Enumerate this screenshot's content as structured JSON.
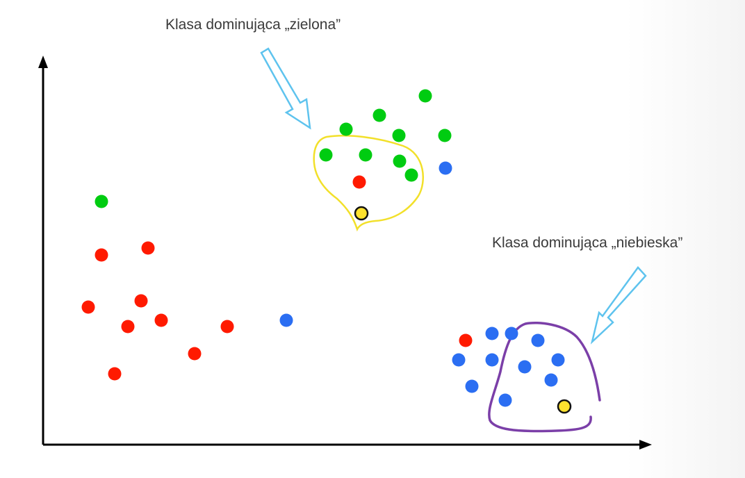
{
  "labels": {
    "green_class": "Klasa dominująca „zielona”",
    "blue_class": "Klasa dominująca „niebieska”"
  },
  "colors": {
    "red": "#ff1a00",
    "green": "#00cc11",
    "blue": "#2b6ef2",
    "query": "#ffe22e",
    "query_outline": "#111111",
    "neighborhood_green": "#f2e02a",
    "neighborhood_blue": "#7b3fa8",
    "arrow": "#5ec3ee",
    "axis": "#000000"
  },
  "chart_data": {
    "type": "scatter",
    "xlim": [
      0,
      1000
    ],
    "ylim": [
      0,
      700
    ],
    "series": [
      {
        "color_key": "green",
        "points": [
          [
            612,
            138
          ],
          [
            546,
            166
          ],
          [
            498,
            186
          ],
          [
            574,
            195
          ],
          [
            640,
            195
          ],
          [
            469,
            223
          ],
          [
            526,
            223
          ],
          [
            575,
            232
          ],
          [
            592,
            252
          ],
          [
            146,
            290
          ]
        ]
      },
      {
        "color_key": "red",
        "points": [
          [
            517,
            262
          ],
          [
            213,
            357
          ],
          [
            146,
            367
          ],
          [
            203,
            433
          ],
          [
            127,
            442
          ],
          [
            232,
            461
          ],
          [
            184,
            470
          ],
          [
            327,
            470
          ],
          [
            280,
            509
          ],
          [
            165,
            538
          ],
          [
            670,
            490
          ]
        ]
      },
      {
        "color_key": "blue",
        "points": [
          [
            641,
            242
          ],
          [
            412,
            461
          ],
          [
            708,
            480
          ],
          [
            736,
            480
          ],
          [
            774,
            490
          ],
          [
            660,
            518
          ],
          [
            708,
            518
          ],
          [
            803,
            518
          ],
          [
            755,
            528
          ],
          [
            793,
            547
          ],
          [
            679,
            556
          ],
          [
            727,
            576
          ]
        ]
      }
    ],
    "queries": [
      [
        520,
        307
      ],
      [
        812,
        585
      ]
    ]
  }
}
